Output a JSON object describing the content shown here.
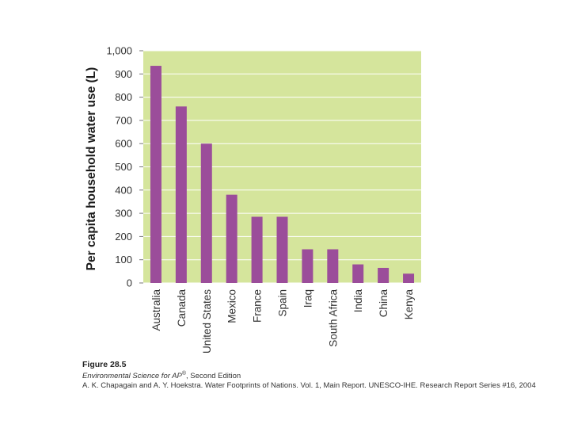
{
  "chart_data": {
    "type": "bar",
    "title": "",
    "xlabel": "",
    "ylabel": "Per capita household water use (L)",
    "ylim": [
      0,
      1000
    ],
    "yticks": [
      0,
      100,
      200,
      300,
      400,
      500,
      600,
      700,
      800,
      900,
      1000
    ],
    "ytick_labels": [
      "0",
      "100",
      "200",
      "300",
      "400",
      "500",
      "600",
      "700",
      "800",
      "900",
      "1,000"
    ],
    "categories": [
      "Australia",
      "Canada",
      "United States",
      "Mexico",
      "France",
      "Spain",
      "Iraq",
      "South Africa",
      "India",
      "China",
      "Kenya"
    ],
    "values": [
      935,
      760,
      600,
      380,
      285,
      285,
      145,
      145,
      80,
      65,
      40
    ],
    "grid": true,
    "colors": {
      "plot_bg": "#d5e59c",
      "bar": "#9b4d9a",
      "grid": "#ffffff",
      "axis_text": "#333333"
    }
  },
  "caption": {
    "figure": "Figure 28.5",
    "book_title": "Environmental Science for AP",
    "superscript": "®",
    "edition": ", Second Edition",
    "source": "A. K. Chapagain and A. Y. Hoekstra. Water Footprints of Nations. Vol. 1, Main Report. UNESCO-IHE. Research Report Series #16, 2004"
  }
}
